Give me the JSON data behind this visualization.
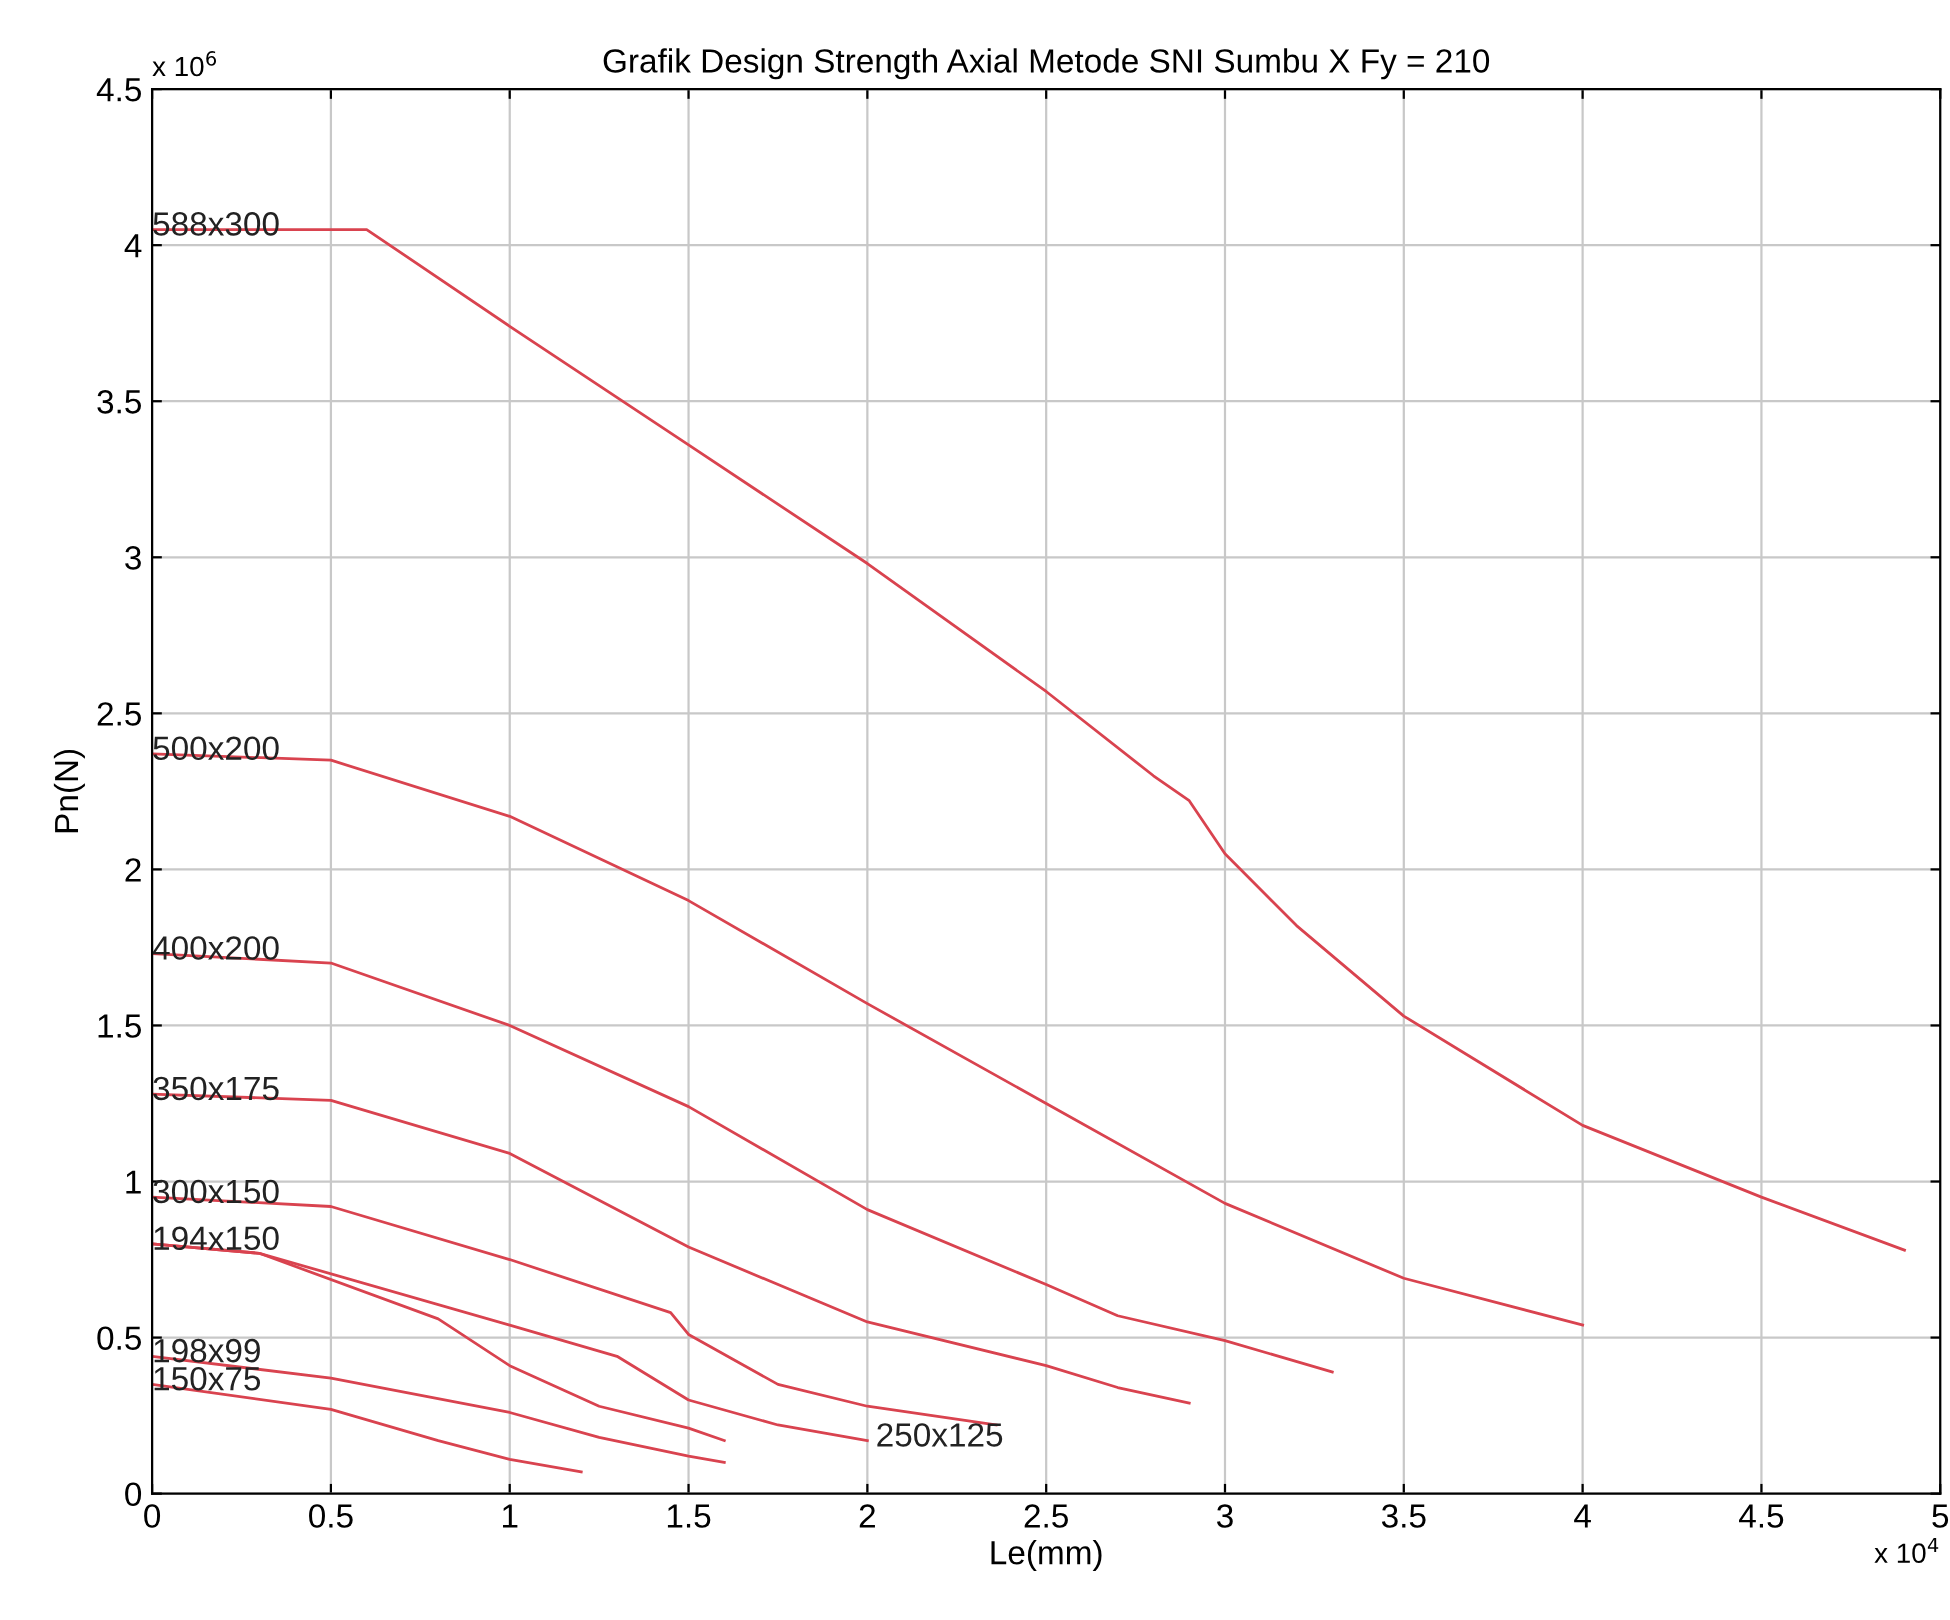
{
  "chart_data": {
    "type": "line",
    "title": "Grafik Design Strength Axial Metode SNI Sumbu X Fy = 210",
    "xlabel": "Le(mm)",
    "ylabel": "Pn(N)",
    "xlim": [
      0,
      5
    ],
    "ylim": [
      0,
      4.5
    ],
    "xticks": [
      0,
      0.5,
      1,
      1.5,
      2,
      2.5,
      3,
      3.5,
      4,
      4.5,
      5
    ],
    "yticks": [
      0,
      0.5,
      1,
      1.5,
      2,
      2.5,
      3,
      3.5,
      4,
      4.5
    ],
    "grid": true,
    "marker": "none",
    "line_style": "solid",
    "series": [
      {
        "name": "588x300",
        "color": "#d9434f",
        "x": [
          0,
          0.6,
          1,
          1.5,
          2,
          2.5,
          2.8,
          2.9,
          3,
          3.2,
          3.5,
          4,
          4.5,
          4.9
        ],
        "values": [
          4.05,
          4.05,
          3.74,
          3.36,
          2.98,
          2.57,
          2.3,
          2.22,
          2.05,
          1.82,
          1.53,
          1.18,
          0.95,
          0.78
        ]
      },
      {
        "name": "500x200",
        "color": "#d9434f",
        "x": [
          0,
          0.5,
          1,
          1.5,
          2,
          2.5,
          3,
          3.5,
          4
        ],
        "values": [
          2.37,
          2.35,
          2.17,
          1.9,
          1.57,
          1.25,
          0.93,
          0.69,
          0.54
        ]
      },
      {
        "name": "400x200",
        "color": "#d9434f",
        "x": [
          0,
          0.5,
          1,
          1.5,
          2,
          2.5,
          2.7,
          3,
          3.3
        ],
        "values": [
          1.73,
          1.7,
          1.5,
          1.24,
          0.91,
          0.67,
          0.57,
          0.49,
          0.39
        ]
      },
      {
        "name": "350x175",
        "color": "#d9434f",
        "x": [
          0,
          0.5,
          1,
          1.5,
          2,
          2.5,
          2.7,
          2.9
        ],
        "values": [
          1.28,
          1.26,
          1.09,
          0.79,
          0.55,
          0.41,
          0.34,
          0.29
        ]
      },
      {
        "name": "300x150",
        "color": "#d9434f",
        "x": [
          0,
          0.5,
          1,
          1.45,
          1.5,
          1.75,
          2,
          2.36
        ],
        "values": [
          0.95,
          0.92,
          0.75,
          0.58,
          0.51,
          0.35,
          0.28,
          0.22
        ]
      },
      {
        "name": "194x150",
        "color": "#d9434f",
        "x": [
          0,
          0.3,
          0.8,
          1,
          1.25,
          1.5,
          1.6
        ],
        "values": [
          0.8,
          0.77,
          0.56,
          0.41,
          0.28,
          0.21,
          0.17
        ]
      },
      {
        "name": "250x125",
        "color": "#d9434f",
        "x": [
          0,
          0.3,
          1,
          1.3,
          1.5,
          1.75,
          2
        ],
        "values": [
          0.8,
          0.77,
          0.54,
          0.44,
          0.3,
          0.22,
          0.17
        ]
      },
      {
        "name": "198x99",
        "color": "#d9434f",
        "x": [
          0,
          0.5,
          1,
          1.25,
          1.5,
          1.6
        ],
        "values": [
          0.44,
          0.37,
          0.26,
          0.18,
          0.12,
          0.1
        ]
      },
      {
        "name": "150x75",
        "color": "#d9434f",
        "x": [
          0,
          0.5,
          0.8,
          1,
          1.2
        ],
        "values": [
          0.35,
          0.27,
          0.17,
          0.11,
          0.07
        ]
      }
    ],
    "annotations": [
      "x 10$^{6}$",
      "x 10$^{4}$"
    ]
  }
}
